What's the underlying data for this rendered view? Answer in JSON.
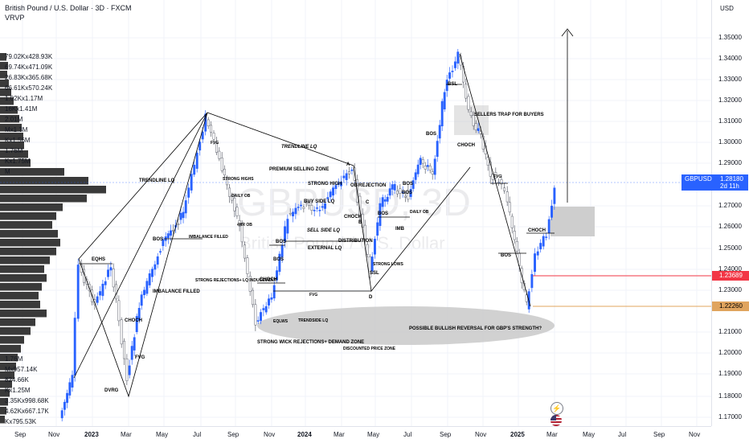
{
  "header": {
    "title": "British Pound / U.S. Dollar · 3D · FXCM",
    "indicator": "VRVP"
  },
  "watermark": {
    "symbol": "GBPUSD, 3D",
    "description": "British Pound / U.S. Dollar"
  },
  "price_axis": {
    "currency": "USD",
    "ticks": [
      "1.35000",
      "1.34000",
      "1.33000",
      "1.32000",
      "1.31000",
      "1.30000",
      "1.29000",
      "1.27000",
      "1.26000",
      "1.25000",
      "1.24000",
      "1.23000",
      "1.21000",
      "1.20000",
      "1.19000",
      "1.18000",
      "1.17000"
    ],
    "current": {
      "symbol": "GBPUSD",
      "price": "1.28180",
      "countdown": "2d 11h",
      "color": "#2962ff"
    },
    "red_level": {
      "price": "1.23689",
      "color": "#f23645"
    },
    "orange_level": {
      "price": "1.22260",
      "color": "#e0a45e"
    }
  },
  "time_axis": {
    "labels": [
      "Sep",
      "Nov",
      "2023",
      "Mar",
      "May",
      "Jul",
      "Sep",
      "Nov",
      "2024",
      "Mar",
      "May",
      "Jul",
      "Sep",
      "Nov",
      "2025",
      "Mar",
      "May",
      "Jul",
      "Sep",
      "Nov"
    ],
    "bold": [
      false,
      false,
      true,
      false,
      false,
      false,
      false,
      false,
      true,
      false,
      false,
      false,
      false,
      false,
      true,
      false,
      false,
      false,
      false,
      false
    ]
  },
  "volume_profile": {
    "labels": [
      "79.02Kx428.93K",
      "69.74Kx471.09K",
      "26.83Kx365.68K",
      "66.61Kx570.24K",
      "1.02Kx1.17M",
      "16Kx1.41M",
      "2.01M",
      "Mx1.3M",
      "Kx1.56M",
      "1.76M",
      "Kx1.75M",
      "M",
      "1.76M",
      "Mx957.14K",
      "824.66K",
      "Kx1.25M",
      "3.35Kx998.68K",
      "4.62Kx667.17K",
      "Kx795.53K"
    ],
    "color": "#3a3a3a"
  },
  "annotations": [
    "TRENDLINE LQ",
    "EQHS",
    "BOS",
    "IMBALANCE FILLED",
    "IMBALANCE FILLED",
    "CHOCH",
    "FVG",
    "DVRG",
    "FVG",
    "STRONG HIGHS",
    "DAILY OB",
    "4HR OB",
    "STRONG REJECTIONS+ LQ INDUCEMENT",
    "CHOCH",
    "BOS",
    "BOS",
    "FVG",
    "TRENDLINE LQ",
    "PREMIUM SELLING ZONE",
    "A",
    "OB",
    "STRONG HIGH",
    "BUY SIDE LQ",
    "REJECTION",
    "C",
    "CHOCH",
    "B",
    "SELL SIDE LQ",
    "DISTRIBUTION",
    "EXTERNAL LQ",
    "STRONG LOWS",
    "SSL",
    "D",
    "BOS",
    "BOS",
    "IMB",
    "DAILY OB",
    "EQLWS",
    "TRENDSIDE LQ",
    "STRONG WICK REJECTIONS+ DEMAND ZONE",
    "DISCOUNTED PRICE ZONE",
    "BSL",
    "BOS",
    "SELLERS TRAP FOR BUYERS",
    "CHOCH",
    "FVG",
    "CHOCH",
    "BOS",
    "POSSIBLE BULLISH REVERSAL FOR GBP'S STRENGTH?",
    "BOS"
  ],
  "colors": {
    "up": "#2962ff",
    "down": "#787b86",
    "zone": "#c9c9c9",
    "accent": "#2962ff"
  },
  "icons": [
    "lightning-icon",
    "us-flag-icon"
  ]
}
